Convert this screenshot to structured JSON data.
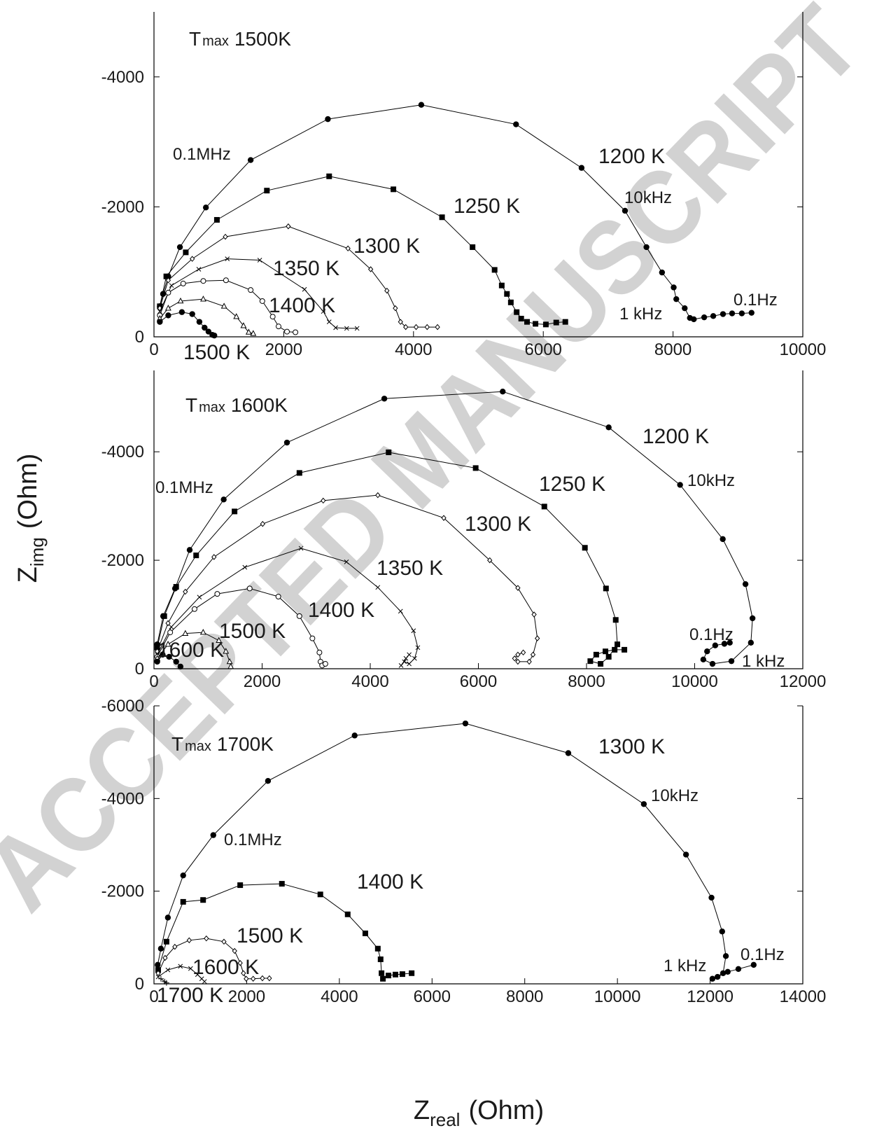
{
  "watermark": "ACCEPTED MANUSCRIPT",
  "ylabel": {
    "symbol": "Z",
    "subscript": "img",
    "text": "(Ohm)"
  },
  "xlabel": {
    "symbol": "Z",
    "subscript": "real",
    "text": "(Ohm)"
  },
  "chart_data": [
    {
      "type": "line",
      "tmax": {
        "symbol": "T",
        "subscript": "max",
        "text": "1500K"
      },
      "xlim": [
        0,
        10000
      ],
      "xticks": [
        0,
        2000,
        4000,
        6000,
        8000,
        10000
      ],
      "ylim": [
        0,
        -5000
      ],
      "yticks": [
        0,
        -2000,
        -4000
      ],
      "annotations": [
        "0.1MHz",
        "10kHz",
        "1 kHz",
        "0.1Hz"
      ],
      "series": [
        {
          "name": "1200 K",
          "marker": "circle",
          "color": "#000000",
          "x": [
            90,
            140,
            220,
            400,
            800,
            1490,
            2680,
            4120,
            5580,
            6590,
            7260,
            7590,
            7830,
            8010,
            8050,
            8180,
            8260,
            8320,
            8480,
            8620,
            8770,
            8910,
            9060,
            9210
          ],
          "values": [
            -470,
            -660,
            -930,
            -1380,
            -1990,
            -2720,
            -3350,
            -3570,
            -3270,
            -2600,
            -1940,
            -1380,
            -990,
            -760,
            -580,
            -440,
            -290,
            -270,
            -300,
            -320,
            -350,
            -360,
            -360,
            -370
          ]
        },
        {
          "name": "1250 K",
          "marker": "square",
          "color": "#000000",
          "x": [
            90,
            190,
            490,
            970,
            1740,
            2700,
            3690,
            4440,
            4910,
            5250,
            5360,
            5440,
            5500,
            5590,
            5660,
            5750,
            5880,
            6040,
            6200,
            6340
          ],
          "values": [
            -470,
            -930,
            -1300,
            -1800,
            -2250,
            -2470,
            -2270,
            -1840,
            -1380,
            -1030,
            -790,
            -660,
            -530,
            -380,
            -280,
            -230,
            -200,
            -190,
            -220,
            -230
          ]
        },
        {
          "name": "1300 K",
          "marker": "diamond",
          "color": "#000000",
          "x": [
            90,
            220,
            590,
            1100,
            2070,
            2990,
            3340,
            3590,
            3720,
            3800,
            3880,
            4040,
            4210,
            4370
          ],
          "values": [
            -440,
            -870,
            -1200,
            -1540,
            -1700,
            -1360,
            -1040,
            -710,
            -440,
            -230,
            -150,
            -150,
            -150,
            -150
          ]
        },
        {
          "name": "1350 K",
          "marker": "x",
          "color": "#000000",
          "x": [
            90,
            270,
            690,
            1130,
            1630,
            2320,
            2610,
            2700,
            2800,
            2970,
            3130
          ],
          "values": [
            -390,
            -790,
            -1040,
            -1200,
            -1180,
            -730,
            -390,
            -230,
            -140,
            -130,
            -130
          ]
        },
        {
          "name": "1400 K",
          "marker": "open-circle",
          "color": "#000000",
          "x": [
            90,
            220,
            450,
            760,
            1110,
            1490,
            1670,
            1830,
            1920,
            2050,
            2180
          ],
          "values": [
            -330,
            -680,
            -820,
            -860,
            -870,
            -720,
            -550,
            -310,
            -160,
            -80,
            -70
          ]
        },
        {
          "name": null,
          "marker": "triangle",
          "color": "#000000",
          "x": [
            90,
            220,
            410,
            760,
            1080,
            1270,
            1380,
            1460,
            1530
          ],
          "values": [
            -280,
            -440,
            -550,
            -580,
            -470,
            -310,
            -170,
            -70,
            -50
          ]
        },
        {
          "name": "1500 K",
          "marker": "circle",
          "color": "#000000",
          "x": [
            90,
            220,
            430,
            590,
            700,
            780,
            840,
            900,
            930
          ],
          "values": [
            -230,
            -330,
            -380,
            -350,
            -230,
            -140,
            -80,
            -30,
            -20
          ]
        }
      ]
    },
    {
      "type": "line",
      "tmax": {
        "symbol": "T",
        "subscript": "max",
        "text": "1600K"
      },
      "xlim": [
        0,
        12000
      ],
      "xticks": [
        0,
        2000,
        4000,
        6000,
        8000,
        10000,
        12000
      ],
      "ylim": [
        0,
        -5500
      ],
      "yticks": [
        0,
        -2000,
        -4000
      ],
      "annotations": [
        "0.1MHz",
        "10kHz",
        "0.1Hz",
        "1 kHz"
      ],
      "series": [
        {
          "name": "1200 K",
          "marker": "circle",
          "color": "#000000",
          "x": [
            60,
            170,
            390,
            660,
            1290,
            2460,
            4260,
            6450,
            8410,
            9730,
            10520,
            10940,
            11070,
            11040,
            10680,
            10330,
            10160,
            10230,
            10380,
            10550,
            10650
          ],
          "values": [
            -450,
            -970,
            -1480,
            -2190,
            -3120,
            -4170,
            -4980,
            -5110,
            -4450,
            -3390,
            -2390,
            -1560,
            -930,
            -480,
            -140,
            -90,
            -170,
            -320,
            -430,
            -460,
            -480
          ]
        },
        {
          "name": "1250 K",
          "marker": "square",
          "color": "#000000",
          "x": [
            60,
            190,
            410,
            780,
            1490,
            2690,
            4340,
            5950,
            7220,
            7970,
            8360,
            8540,
            8570,
            8410,
            8260,
            8070,
            8180,
            8350,
            8520,
            8700
          ],
          "values": [
            -390,
            -970,
            -1510,
            -2090,
            -2900,
            -3610,
            -3990,
            -3700,
            -2990,
            -2230,
            -1480,
            -900,
            -450,
            -220,
            -90,
            -140,
            -260,
            -320,
            -350,
            -350
          ]
        },
        {
          "name": "1300 K",
          "marker": "diamond",
          "color": "#000000",
          "x": [
            60,
            260,
            580,
            1110,
            2010,
            3130,
            4140,
            5360,
            6210,
            6730,
            7030,
            7090,
            7010,
            6940,
            6730,
            6670,
            6730,
            6830
          ],
          "values": [
            -320,
            -840,
            -1420,
            -2060,
            -2670,
            -3100,
            -3200,
            -2780,
            -2000,
            -1490,
            -1000,
            -560,
            -260,
            -130,
            -130,
            -190,
            -260,
            -300
          ]
        },
        {
          "name": "1350 K",
          "marker": "x",
          "color": "#000000",
          "x": [
            60,
            320,
            840,
            1680,
            2720,
            3560,
            4140,
            4560,
            4800,
            4880,
            4820,
            4720,
            4630,
            4570,
            4660,
            4720
          ],
          "values": [
            -260,
            -770,
            -1320,
            -1870,
            -2220,
            -1970,
            -1500,
            -1060,
            -700,
            -390,
            -190,
            -90,
            -130,
            -60,
            -190,
            -260
          ]
        },
        {
          "name": "1400 K",
          "marker": "open-circle",
          "color": "#000000",
          "x": [
            60,
            300,
            750,
            1170,
            1770,
            2300,
            2690,
            2930,
            3060,
            3080,
            3110,
            3170
          ],
          "values": [
            -220,
            -670,
            -1100,
            -1380,
            -1480,
            -1330,
            -970,
            -560,
            -300,
            -130,
            -60,
            -90
          ]
        },
        {
          "name": "1500 K",
          "marker": "triangle",
          "color": "#000000",
          "x": [
            60,
            260,
            580,
            910,
            1200,
            1330,
            1400,
            1420
          ],
          "values": [
            -190,
            -450,
            -650,
            -670,
            -520,
            -320,
            -130,
            -40
          ]
        },
        {
          "name": "1600 K",
          "marker": "circle",
          "color": "#000000",
          "x": [
            60,
            160,
            280,
            410,
            490
          ],
          "values": [
            -130,
            -260,
            -220,
            -130,
            -40
          ]
        }
      ]
    },
    {
      "type": "line",
      "tmax": {
        "symbol": "T",
        "subscript": "max",
        "text": "1700K"
      },
      "xlim": [
        0,
        14000
      ],
      "xticks": [
        0,
        2000,
        4000,
        6000,
        8000,
        10000,
        12000,
        14000
      ],
      "ylim": [
        0,
        -6000
      ],
      "yticks": [
        0,
        -2000,
        -4000,
        -6000
      ],
      "annotations": [
        "10kHz",
        "0.1MHz",
        "1 kHz",
        "0.1Hz"
      ],
      "series": [
        {
          "name": "1300 K",
          "marker": "circle",
          "color": "#000000",
          "x": [
            80,
            150,
            300,
            630,
            1280,
            2460,
            4330,
            6720,
            8940,
            10570,
            11480,
            12030,
            12260,
            12340,
            12280,
            12050,
            12160,
            12380,
            12610,
            12940
          ],
          "values": [
            -410,
            -760,
            -1430,
            -2340,
            -3210,
            -4380,
            -5360,
            -5620,
            -4980,
            -3880,
            -2790,
            -1860,
            -1130,
            -600,
            -230,
            -110,
            -150,
            -260,
            -320,
            -410
          ]
        },
        {
          "name": "1400 K",
          "marker": "square",
          "color": "#000000",
          "x": [
            90,
            270,
            630,
            1060,
            1860,
            2760,
            3590,
            4180,
            4560,
            4830,
            4890,
            4910,
            4940,
            5060,
            5210,
            5360,
            5560
          ],
          "values": [
            -300,
            -910,
            -1770,
            -1810,
            -2130,
            -2160,
            -1930,
            -1500,
            -1090,
            -760,
            -530,
            -230,
            -110,
            -180,
            -200,
            -210,
            -230
          ]
        },
        {
          "name": "1500 K",
          "marker": "diamond",
          "color": "#000000",
          "x": [
            90,
            240,
            450,
            760,
            1130,
            1510,
            1740,
            1860,
            1930,
            1990,
            2140,
            2340,
            2490
          ],
          "values": [
            -230,
            -560,
            -800,
            -940,
            -980,
            -910,
            -710,
            -450,
            -230,
            -110,
            -110,
            -120,
            -120
          ]
        },
        {
          "name": "1600 K",
          "marker": "x",
          "color": "#000000",
          "x": [
            90,
            300,
            570,
            790,
            940,
            1030,
            1090
          ],
          "values": [
            -150,
            -300,
            -380,
            -330,
            -200,
            -110,
            -50
          ]
        },
        {
          "name": "1700 K",
          "marker": "plus",
          "color": "#000000",
          "x": [
            150,
            230,
            270
          ],
          "values": [
            -110,
            -50,
            -20
          ]
        }
      ]
    }
  ]
}
